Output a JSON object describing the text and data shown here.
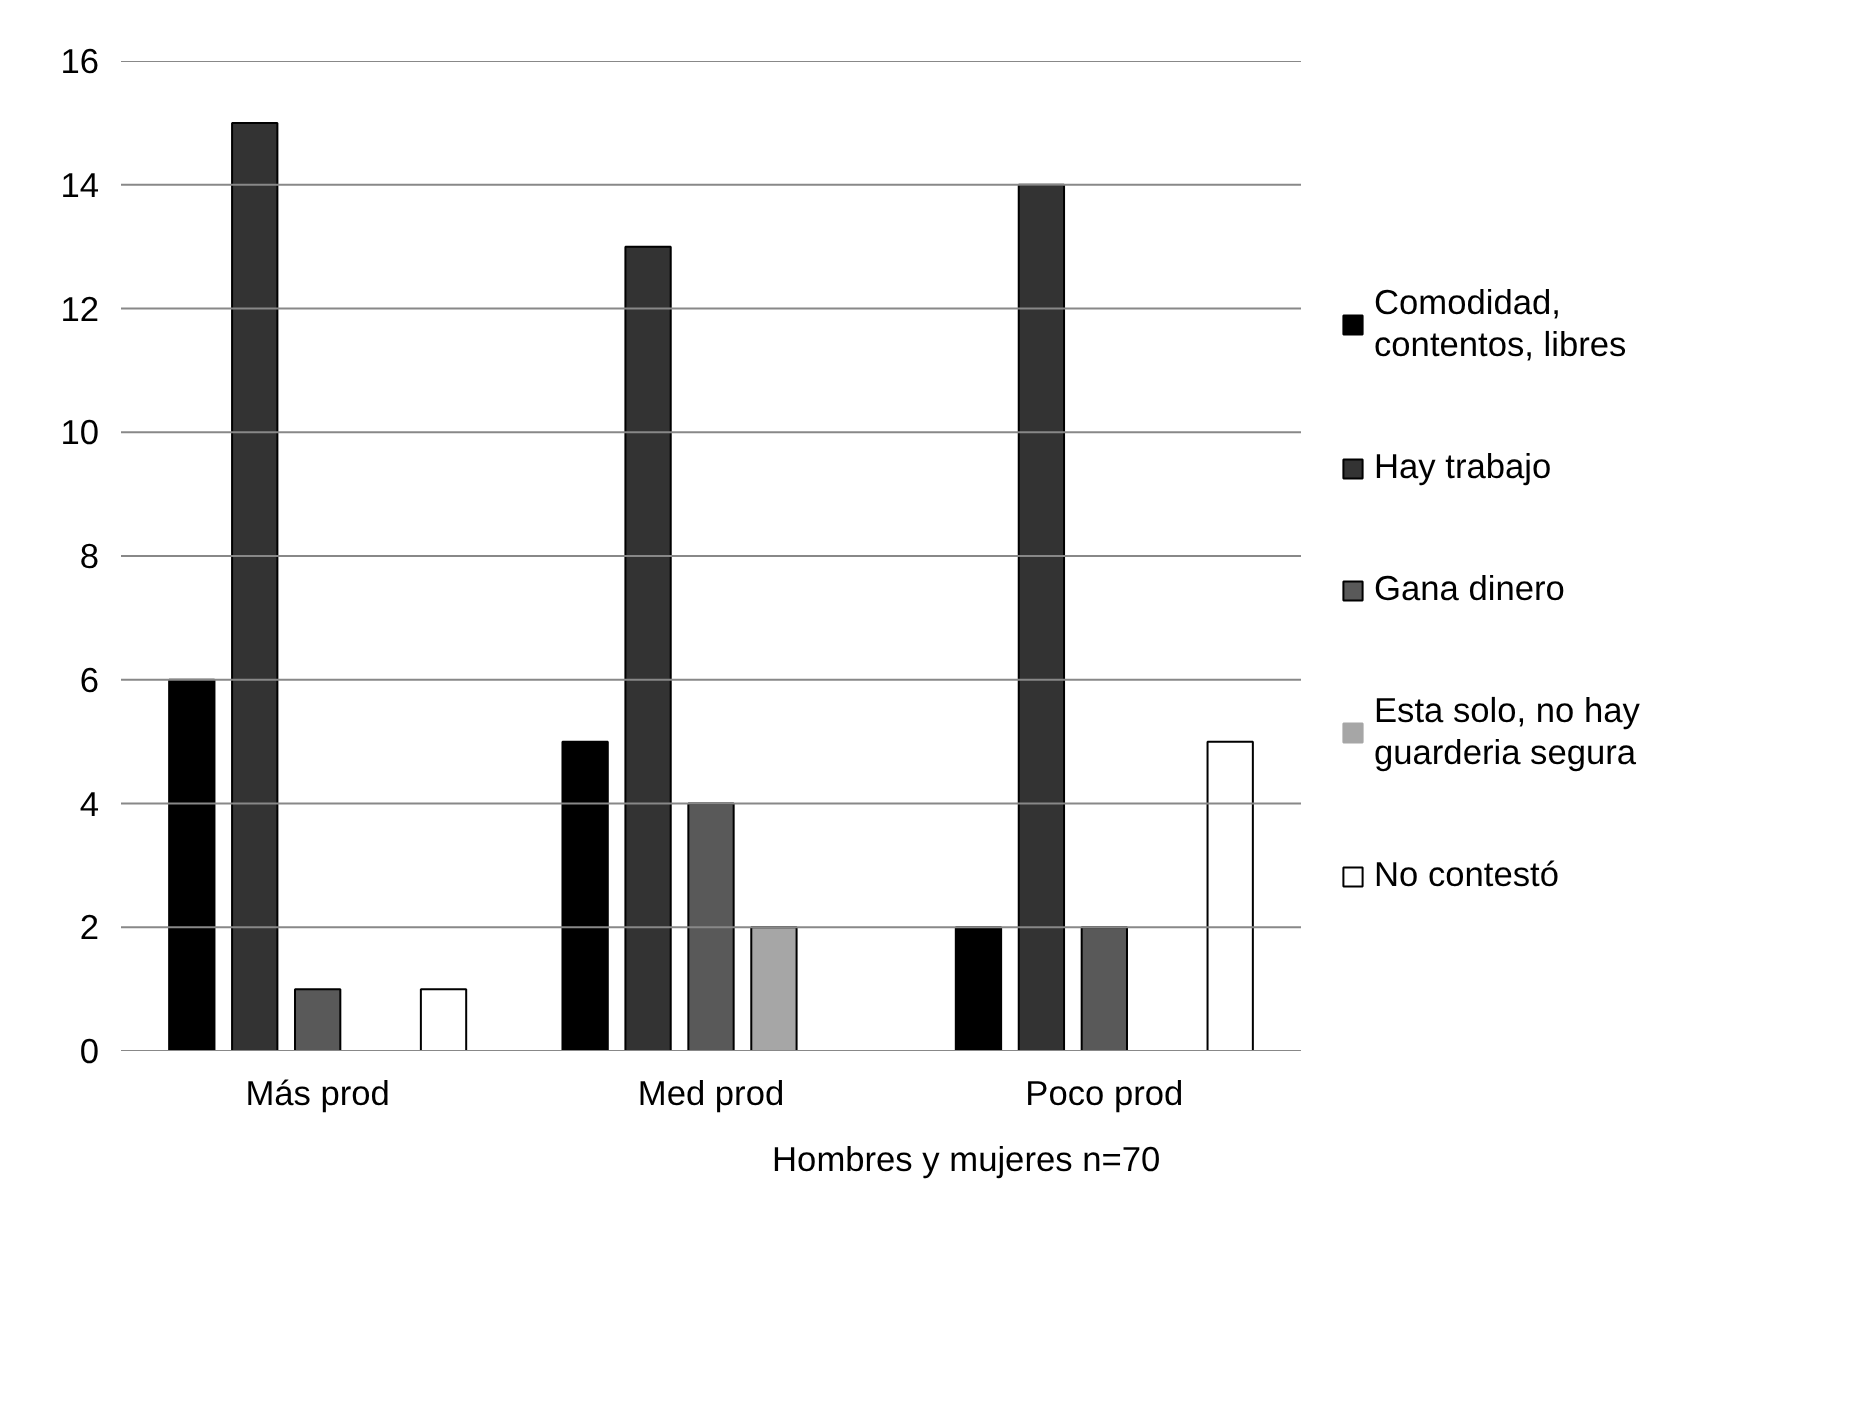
{
  "chart_data": {
    "type": "bar",
    "xlabel": "Hombres y mujeres  n=70",
    "categories": [
      "Más prod",
      "Med prod",
      "Poco prod"
    ],
    "series": [
      {
        "name": "Comodidad, contentos, libres",
        "color": "#000000",
        "values": [
          6,
          5,
          2
        ]
      },
      {
        "name": "Hay trabajo",
        "color": "#333333",
        "values": [
          15,
          13,
          14
        ]
      },
      {
        "name": "Gana dinero",
        "color": "#595959",
        "values": [
          1,
          4,
          2
        ]
      },
      {
        "name": "Esta solo, no hay guarderia segura",
        "color": "#a6a6a6",
        "values": [
          0,
          2,
          0
        ]
      },
      {
        "name": "No contestó",
        "color": "#ffffff",
        "values": [
          1,
          0,
          5
        ]
      }
    ],
    "ylim": [
      0,
      16
    ],
    "yticks": [
      0,
      2,
      4,
      6,
      8,
      10,
      12,
      14,
      16
    ],
    "grid": "y",
    "legend": "right"
  }
}
